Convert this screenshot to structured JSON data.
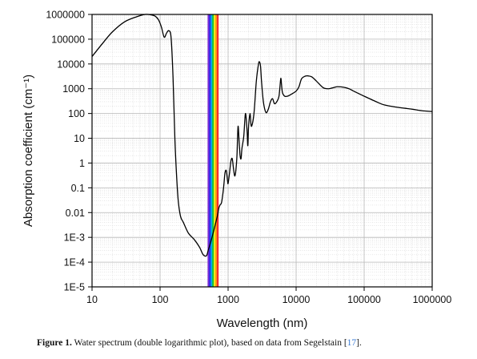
{
  "caption": {
    "label": "Figure 1.",
    "text": "Water spectrum (double logarithmic plot), based on data from Segelstain [",
    "ref": "17",
    "end": "]."
  },
  "chart_data": {
    "type": "line",
    "xlabel": "Wavelength (nm)",
    "ylabel": "Absorption coefficient (cm⁻¹)",
    "xscale": "log",
    "yscale": "log",
    "xlim": [
      10,
      1000000
    ],
    "ylim": [
      1e-05,
      1000000
    ],
    "x_ticks": [
      10,
      100,
      1000,
      10000,
      100000,
      1000000
    ],
    "x_tick_labels": [
      "10",
      "100",
      "1000",
      "10000",
      "100000",
      "1000000"
    ],
    "y_ticks": [
      1e-05,
      0.0001,
      0.001,
      0.01,
      0.1,
      1,
      10,
      100,
      1000,
      10000,
      100000,
      1000000
    ],
    "y_tick_labels": [
      "1E-5",
      "1E-4",
      "1E-3",
      "0.01",
      "0.1",
      "1",
      "10",
      "100",
      "1000",
      "10000",
      "100000",
      "1000000"
    ],
    "grid": true,
    "line_color": "#000000",
    "visible_spectrum_band": {
      "x_range": [
        500,
        720
      ],
      "colors": [
        "#7a2bd6",
        "#2233ee",
        "#0aa7ee",
        "#19c630",
        "#f2ea1a",
        "#ff9a10",
        "#f23030"
      ]
    },
    "series": [
      {
        "x": [
          10,
          15,
          20,
          30,
          45,
          60,
          75,
          85,
          95,
          105,
          115,
          125,
          135,
          145,
          155,
          165,
          175,
          185,
          200,
          220,
          260,
          320,
          380,
          430,
          480,
          510,
          540,
          560,
          590,
          620,
          660,
          700,
          730,
          760,
          800,
          840,
          870,
          900,
          940,
          980,
          1000,
          1050,
          1100,
          1150,
          1200,
          1250,
          1300,
          1350,
          1400,
          1450,
          1500,
          1550,
          1600,
          1700,
          1800,
          1900,
          1950,
          2000,
          2100,
          2200,
          2400,
          2600,
          2800,
          2900,
          3000,
          3100,
          3300,
          3600,
          3900,
          4200,
          4500,
          4800,
          5200,
          5600,
          5900,
          6000,
          6100,
          6300,
          6800,
          7500,
          8500,
          10000,
          11000,
          12000,
          13500,
          15000,
          17000,
          20000,
          25000,
          30000,
          35000,
          40000,
          50000,
          60000,
          70000,
          100000,
          150000,
          200000,
          300000,
          500000,
          700000,
          1000000
        ],
        "y": [
          20000,
          80000,
          200000,
          500000,
          800000,
          1000000,
          950000,
          850000,
          600000,
          300000,
          120000,
          180000,
          220000,
          120000,
          3000,
          10,
          0.3,
          0.03,
          0.007,
          0.004,
          0.0015,
          0.0008,
          0.0004,
          0.0002,
          0.00018,
          0.0003,
          0.0005,
          0.0007,
          0.0012,
          0.002,
          0.004,
          0.008,
          0.015,
          0.02,
          0.025,
          0.06,
          0.15,
          0.4,
          0.5,
          0.2,
          0.15,
          0.4,
          1.2,
          1.5,
          0.6,
          0.3,
          0.5,
          2,
          30,
          8,
          2,
          1.5,
          4,
          12,
          100,
          20,
          5,
          30,
          100,
          30,
          100,
          2000,
          10000,
          12000,
          8000,
          2000,
          300,
          110,
          150,
          300,
          400,
          250,
          300,
          500,
          2200,
          2500,
          1500,
          700,
          500,
          500,
          600,
          800,
          1200,
          2500,
          3200,
          3300,
          3000,
          2000,
          1100,
          1000,
          1100,
          1200,
          1150,
          1000,
          800,
          500,
          300,
          220,
          180,
          150,
          130,
          120
        ]
      }
    ]
  }
}
